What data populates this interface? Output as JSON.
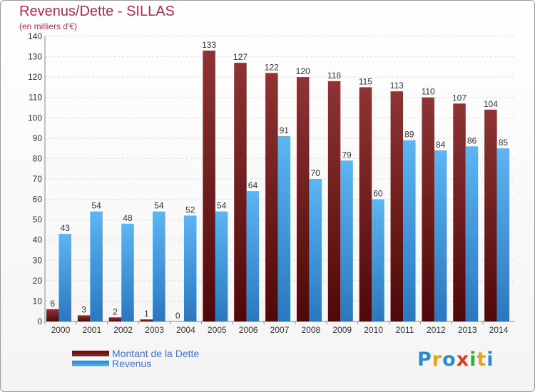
{
  "colors": {
    "dette": "#7a1a1a",
    "revenus": "#3a9ee8",
    "title": "#b12b4c",
    "legend_text": "#3b6fe0"
  },
  "logo": {
    "text": "Proxiti",
    "letters": [
      {
        "ch": "P",
        "color": "#2f8ac9"
      },
      {
        "ch": "r",
        "color": "#e8a020"
      },
      {
        "ch": "o",
        "color": "#2f8ac9"
      },
      {
        "ch": "x",
        "color": "#d93c2b"
      },
      {
        "ch": "i",
        "color": "#3aa836"
      },
      {
        "ch": "t",
        "color": "#e8a020"
      },
      {
        "ch": "i",
        "color": "#2f8ac9"
      }
    ]
  },
  "chart_data": {
    "type": "bar",
    "title": "Revenus/Dette - SILLAS",
    "subtitle": "(en milliers d'€)",
    "categories": [
      "2000",
      "2001",
      "2002",
      "2003",
      "2004",
      "2005",
      "2006",
      "2007",
      "2008",
      "2009",
      "2010",
      "2011",
      "2012",
      "2013",
      "2014"
    ],
    "series": [
      {
        "name": "Montant de la Dette",
        "values": [
          6,
          3,
          2,
          1,
          0,
          133,
          127,
          122,
          120,
          118,
          115,
          113,
          110,
          107,
          104
        ]
      },
      {
        "name": "Revenus",
        "values": [
          43,
          54,
          48,
          54,
          52,
          54,
          64,
          91,
          70,
          79,
          60,
          89,
          84,
          86,
          85
        ]
      }
    ],
    "ylim": [
      0,
      140
    ],
    "yticks": [
      0,
      10,
      20,
      30,
      40,
      50,
      60,
      70,
      80,
      90,
      100,
      110,
      120,
      130,
      140
    ],
    "grid": true,
    "legend_position": "bottom-left"
  }
}
